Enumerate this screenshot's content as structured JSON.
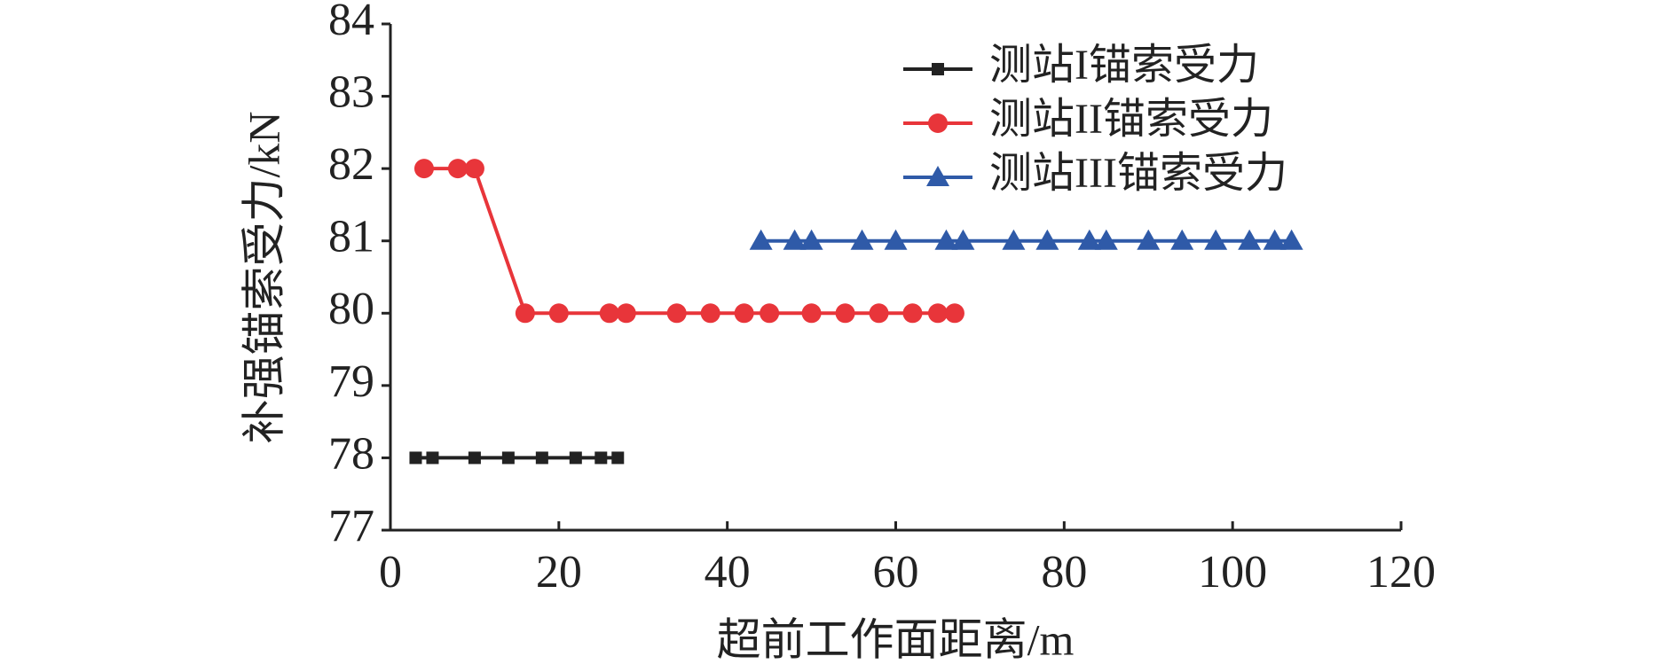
{
  "chart_data": {
    "type": "line",
    "x_label": "超前工作面距离/m",
    "y_label": "补强锚索受力/kN",
    "xlim": [
      0,
      120
    ],
    "xticks": [
      0,
      20,
      40,
      60,
      80,
      100,
      120
    ],
    "ylim": [
      77,
      84
    ],
    "yticks": [
      77,
      78,
      79,
      80,
      81,
      82,
      83,
      84
    ],
    "legend": "top-right",
    "series": [
      {
        "name": "测站I锚索受力",
        "color": "#222222",
        "marker": "square",
        "x": [
          3,
          5,
          10,
          14,
          18,
          22,
          25,
          27
        ],
        "values": [
          78,
          78,
          78,
          78,
          78,
          78,
          78,
          78
        ]
      },
      {
        "name": "测站II锚索受力",
        "color": "#e8353a",
        "marker": "circle",
        "x": [
          4,
          8,
          10,
          16,
          20,
          26,
          28,
          34,
          38,
          42,
          45,
          50,
          54,
          58,
          62,
          65,
          67
        ],
        "values": [
          82,
          82,
          82,
          80,
          80,
          80,
          80,
          80,
          80,
          80,
          80,
          80,
          80,
          80,
          80,
          80,
          80
        ]
      },
      {
        "name": "测站III锚索受力",
        "color": "#2f5aa8",
        "marker": "triangle",
        "x": [
          44,
          48,
          50,
          56,
          60,
          66,
          68,
          74,
          78,
          83,
          85,
          90,
          94,
          98,
          102,
          105,
          107
        ],
        "values": [
          81,
          81,
          81,
          81,
          81,
          81,
          81,
          81,
          81,
          81,
          81,
          81,
          81,
          81,
          81,
          81,
          81
        ]
      }
    ]
  }
}
